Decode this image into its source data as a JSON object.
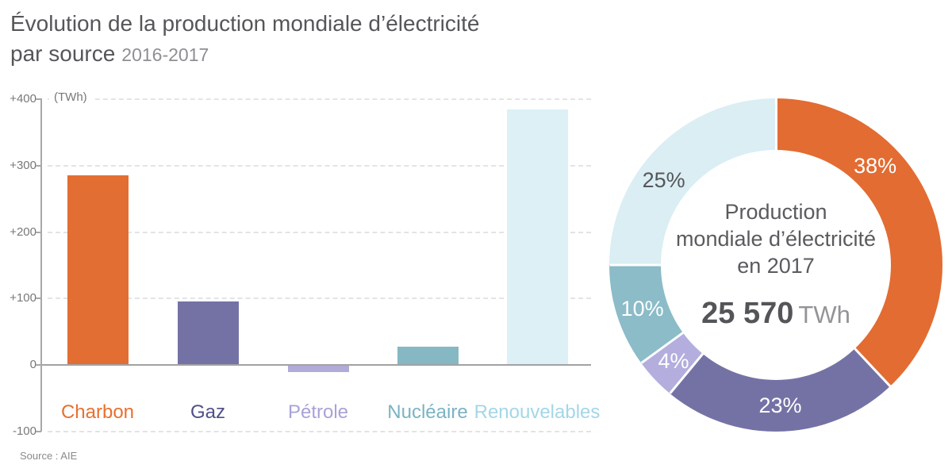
{
  "header": {
    "title_line1": "Évolution de la production mondiale d’électricité",
    "title_line2": "par source",
    "period": "2016-2017"
  },
  "footer": {
    "source": "Source : AIE"
  },
  "chart_data": [
    {
      "type": "bar",
      "title": "Évolution de la production mondiale d’électricité par source 2016-2017",
      "ylabel": "(TWh)",
      "unit": "TWh",
      "ylim": [
        -100,
        400
      ],
      "grid": "dashed-horizontal",
      "yticks": [
        {
          "value": 400,
          "label": "+400"
        },
        {
          "value": 300,
          "label": "+300"
        },
        {
          "value": 200,
          "label": "+200"
        },
        {
          "value": 100,
          "label": "+100"
        },
        {
          "value": 0,
          "label": "0"
        },
        {
          "value": -100,
          "label": "-100"
        }
      ],
      "categories": [
        "Charbon",
        "Gaz",
        "Pétrole",
        "Nucléaire",
        "Renouvelables"
      ],
      "values": [
        285,
        95,
        -10,
        27,
        385
      ],
      "bar_colors": [
        "#e26e33",
        "#7472a5",
        "#b1abd8",
        "#85b8c3",
        "#dcf0f5"
      ],
      "label_colors": [
        "#e8702f",
        "#504f88",
        "#a8a2d8",
        "#7ab3c3",
        "#a4d6e7"
      ]
    },
    {
      "type": "donut",
      "center_lines": [
        "Production",
        "mondiale d’électricité",
        "en 2017"
      ],
      "total_value": "25 570",
      "total_unit": "TWh",
      "slices": [
        {
          "label": "Charbon",
          "pct": 38,
          "pct_label": "38%",
          "color": "#e26c32",
          "pct_text_color": "#ffffff"
        },
        {
          "label": "Gaz",
          "pct": 23,
          "pct_label": "23%",
          "color": "#7472a5",
          "pct_text_color": "#ffffff"
        },
        {
          "label": "Pétrole",
          "pct": 4,
          "pct_label": "4%",
          "color": "#b3aedd",
          "pct_text_color": "#ffffff"
        },
        {
          "label": "Nucléaire",
          "pct": 10,
          "pct_label": "10%",
          "color": "#8bbcc8",
          "pct_text_color": "#ffffff"
        },
        {
          "label": "Renouvelables",
          "pct": 25,
          "pct_label": "25%",
          "color": "#daeef3",
          "pct_text_color": "#55565a"
        }
      ]
    }
  ]
}
